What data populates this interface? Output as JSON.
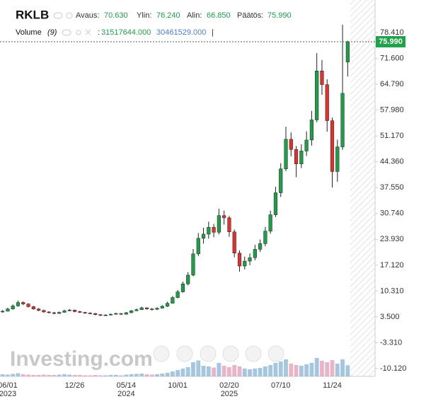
{
  "chart_data": {
    "type": "candlestick",
    "header": {
      "symbol": "RKLB",
      "open_label": "Avaus:",
      "open": "70.630",
      "high_label": "Ylin:",
      "high": "76.240",
      "low_label": "Alin:",
      "low": "66.850",
      "close_label": "Päätös:",
      "close": "75.990",
      "volume_label": "Volume",
      "volume_period": "(9)",
      "separator": ":",
      "volume": "31517644.000",
      "volume_ma": "30461529.000",
      "cursor": "|"
    },
    "watermark": "Investing.com",
    "price_tag": {
      "value": 75.99,
      "label": "75.990"
    },
    "up_color": "#1f9e49",
    "down_color": "#e0312e",
    "volume_up_color": "#8fb8d8",
    "volume_down_color": "#e4a3b8",
    "categories": [
      null,
      "06/01",
      null,
      null,
      null,
      null,
      null,
      null,
      null,
      null,
      null,
      null,
      null,
      null,
      "12/26",
      null,
      null,
      null,
      null,
      null,
      null,
      null,
      null,
      null,
      "05/14",
      null,
      null,
      null,
      null,
      null,
      null,
      null,
      null,
      null,
      "10/01",
      null,
      null,
      null,
      null,
      null,
      null,
      null,
      null,
      null,
      "02/20",
      null,
      null,
      null,
      null,
      null,
      null,
      null,
      null,
      null,
      "07/10",
      null,
      null,
      null,
      null,
      null,
      null,
      null,
      null,
      null,
      "11/24",
      null,
      null,
      null
    ],
    "years": [
      null,
      "2023",
      null,
      null,
      null,
      null,
      null,
      null,
      null,
      null,
      null,
      null,
      null,
      null,
      null,
      null,
      null,
      null,
      null,
      null,
      null,
      null,
      null,
      null,
      "2024",
      null,
      null,
      null,
      null,
      null,
      null,
      null,
      null,
      null,
      null,
      null,
      null,
      null,
      null,
      null,
      null,
      null,
      null,
      null,
      "2025",
      null,
      null,
      null,
      null,
      null,
      null,
      null,
      null,
      null,
      null,
      null,
      null,
      null,
      null,
      null,
      null,
      null,
      null,
      null,
      null,
      null,
      null,
      null
    ],
    "open": [
      4.8,
      5.0,
      5.6,
      6.4,
      7.3,
      6.9,
      6.2,
      5.6,
      5.2,
      4.8,
      4.6,
      4.4,
      4.7,
      5.1,
      5.3,
      4.9,
      4.7,
      4.5,
      4.4,
      4.1,
      3.9,
      4.0,
      4.2,
      4.4,
      4.2,
      4.6,
      5.1,
      5.4,
      5.9,
      5.6,
      5.5,
      5.8,
      6.3,
      7.1,
      8.6,
      10.1,
      12.2,
      14.5,
      20.1,
      24.2,
      25.3,
      27.1,
      25.8,
      30.2,
      29.6,
      25.9,
      20.3,
      16.9,
      18.2,
      19.1,
      21.3,
      22.8,
      26.1,
      30.4,
      36.2,
      42.5,
      50.3,
      47.6,
      43.8,
      47.2,
      50.1,
      55.4,
      68.3,
      64.7,
      55.2,
      41.8,
      48.3,
      70.63
    ],
    "high": [
      5.3,
      5.9,
      6.8,
      7.8,
      7.6,
      7.1,
      6.4,
      5.8,
      5.4,
      5.0,
      4.8,
      4.9,
      5.4,
      5.6,
      5.4,
      5.1,
      4.8,
      4.7,
      4.5,
      4.2,
      4.2,
      4.4,
      4.6,
      4.5,
      4.8,
      5.3,
      5.7,
      6.2,
      6.0,
      5.8,
      6.0,
      6.6,
      7.5,
      9.0,
      10.6,
      12.8,
      15.3,
      21.4,
      25.6,
      27.0,
      28.6,
      28.0,
      32.0,
      31.5,
      30.1,
      26.5,
      21.0,
      19.4,
      20.2,
      22.5,
      23.9,
      27.2,
      31.5,
      37.8,
      44.0,
      53.6,
      52.1,
      48.5,
      49.0,
      52.4,
      57.8,
      73.0,
      71.2,
      66.1,
      56.0,
      50.2,
      80.5,
      76.24
    ],
    "low": [
      4.6,
      4.9,
      5.4,
      6.2,
      6.6,
      6.0,
      5.4,
      5.0,
      4.6,
      4.4,
      4.2,
      4.3,
      4.6,
      5.0,
      4.7,
      4.5,
      4.3,
      4.2,
      3.9,
      3.7,
      3.8,
      3.9,
      4.1,
      4.0,
      4.1,
      4.5,
      5.0,
      5.3,
      5.4,
      5.2,
      5.3,
      5.7,
      6.1,
      7.0,
      8.4,
      9.9,
      11.8,
      14.2,
      19.5,
      22.8,
      24.1,
      24.5,
      25.2,
      27.8,
      24.6,
      19.2,
      15.4,
      16.0,
      17.1,
      18.4,
      20.6,
      22.1,
      25.4,
      29.8,
      35.1,
      41.9,
      45.8,
      40.3,
      42.7,
      45.9,
      48.6,
      54.8,
      62.0,
      52.3,
      37.6,
      39.1,
      47.5,
      66.85
    ],
    "close": [
      5.0,
      5.6,
      6.4,
      7.3,
      6.9,
      6.2,
      5.6,
      5.2,
      4.8,
      4.6,
      4.4,
      4.7,
      5.1,
      5.3,
      4.9,
      4.7,
      4.5,
      4.4,
      4.1,
      3.9,
      4.0,
      4.2,
      4.4,
      4.2,
      4.6,
      5.1,
      5.4,
      5.9,
      5.6,
      5.5,
      5.8,
      6.3,
      7.1,
      8.6,
      10.1,
      12.2,
      14.5,
      20.1,
      24.2,
      25.3,
      27.1,
      25.8,
      30.2,
      29.6,
      25.9,
      20.3,
      16.9,
      18.2,
      19.1,
      21.3,
      22.8,
      26.1,
      30.4,
      36.2,
      42.5,
      50.3,
      47.6,
      43.8,
      47.2,
      50.1,
      55.4,
      68.3,
      64.7,
      55.2,
      41.8,
      48.3,
      62.4,
      75.99
    ],
    "volume": [
      6000000,
      5000000,
      7000000,
      9000000,
      6000000,
      5000000,
      4000000,
      4000000,
      5000000,
      4000000,
      4000000,
      5000000,
      6000000,
      5000000,
      4000000,
      4000000,
      3000000,
      3000000,
      4000000,
      3000000,
      3000000,
      4000000,
      4000000,
      3000000,
      5000000,
      6000000,
      7000000,
      8000000,
      6000000,
      5000000,
      6000000,
      8000000,
      10000000,
      14000000,
      18000000,
      22000000,
      26000000,
      40000000,
      45000000,
      30000000,
      28000000,
      25000000,
      38000000,
      30000000,
      26000000,
      32000000,
      28000000,
      22000000,
      20000000,
      22000000,
      24000000,
      28000000,
      32000000,
      38000000,
      42000000,
      48000000,
      36000000,
      32000000,
      30000000,
      34000000,
      38000000,
      52000000,
      44000000,
      40000000,
      46000000,
      36000000,
      48000000,
      31517644
    ],
    "ylim": [
      -12.17,
      81.4
    ],
    "yticks": [
      {
        "value": 78.41,
        "label": "78.410"
      },
      {
        "value": 71.6,
        "label": "71.600"
      },
      {
        "value": 64.79,
        "label": "64.790"
      },
      {
        "value": 57.98,
        "label": "57.980"
      },
      {
        "value": 51.17,
        "label": "51.170"
      },
      {
        "value": 44.36,
        "label": "44.360"
      },
      {
        "value": 37.55,
        "label": "37.550"
      },
      {
        "value": 30.74,
        "label": "30.740"
      },
      {
        "value": 23.93,
        "label": "23.930"
      },
      {
        "value": 17.12,
        "label": "17.120"
      },
      {
        "value": 10.31,
        "label": "10.310"
      },
      {
        "value": 3.5,
        "label": "3.500"
      },
      {
        "value": -3.31,
        "label": "-3.310"
      },
      {
        "value": -10.12,
        "label": "-10.120"
      }
    ],
    "grid": false
  }
}
